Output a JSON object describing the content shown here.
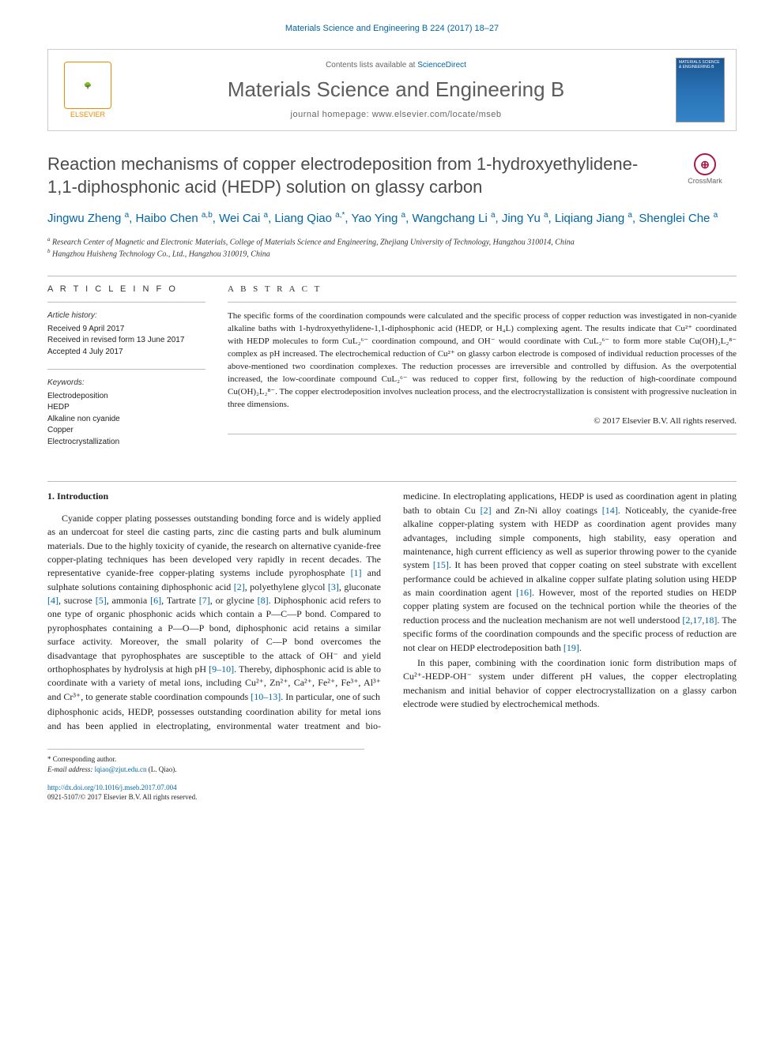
{
  "citation": "Materials Science and Engineering B 224 (2017) 18–27",
  "header": {
    "contents_prefix": "Contents lists available at ",
    "contents_link": "ScienceDirect",
    "journal": "Materials Science and Engineering B",
    "homepage_prefix": "journal homepage: ",
    "homepage_url": "www.elsevier.com/locate/mseb",
    "publisher": "ELSEVIER",
    "cover_text": "MATERIALS SCIENCE & ENGINEERING B"
  },
  "title": "Reaction mechanisms of copper electrodeposition from 1-hydroxyethylidene-1,1-diphosphonic acid (HEDP) solution on glassy carbon",
  "crossmark": "CrossMark",
  "authors_html": "Jingwu Zheng <sup>a</sup>, Haibo Chen <sup>a,b</sup>, Wei Cai <sup>a</sup>, Liang Qiao <sup>a,*</sup>, Yao Ying <sup>a</sup>, Wangchang Li <sup>a</sup>, Jing Yu <sup>a</sup>, Liqiang Jiang <sup>a</sup>, Shenglei Che <sup>a</sup>",
  "affiliations": {
    "a": "Research Center of Magnetic and Electronic Materials, College of Materials Science and Engineering, Zhejiang University of Technology, Hangzhou 310014, China",
    "b": "Hangzhou Huisheng Technology Co., Ltd., Hangzhou 310019, China"
  },
  "article_info": {
    "heading": "A R T I C L E   I N F O",
    "history_label": "Article history:",
    "history": [
      "Received 9 April 2017",
      "Received in revised form 13 June 2017",
      "Accepted 4 July 2017"
    ],
    "keywords_label": "Keywords:",
    "keywords": [
      "Electrodeposition",
      "HEDP",
      "Alkaline non cyanide",
      "Copper",
      "Electrocrystallization"
    ]
  },
  "abstract": {
    "heading": "A B S T R A C T",
    "text": "The specific forms of the coordination compounds were calculated and the specific process of copper reduction was investigated in non-cyanide alkaline baths with 1-hydroxyethylidene-1,1-diphosphonic acid (HEDP, or H₄L) complexing agent. The results indicate that Cu²⁺ coordinated with HEDP molecules to form CuL₂⁶⁻ coordination compound, and OH⁻ would coordinate with CuL₂⁶⁻ to form more stable Cu(OH)₂L₂⁸⁻ complex as pH increased. The electrochemical reduction of Cu²⁺ on glassy carbon electrode is composed of individual reduction processes of the above-mentioned two coordination complexes. The reduction processes are irreversible and controlled by diffusion. As the overpotential increased, the low-coordinate compound CuL₂⁶⁻ was reduced to copper first, following by the reduction of high-coordinate compound Cu(OH)₂L₂⁸⁻. The copper electrodeposition involves nucleation process, and the electrocrystallization is consistent with progressive nucleation in three dimensions.",
    "copyright": "© 2017 Elsevier B.V. All rights reserved."
  },
  "intro": {
    "heading": "1. Introduction",
    "para1_html": "Cyanide copper plating possesses outstanding bonding force and is widely applied as an undercoat for steel die casting parts, zinc die casting parts and bulk aluminum materials. Due to the highly toxicity of cyanide, the research on alternative cyanide-free copper-plating techniques has been developed very rapidly in recent decades. The representative cyanide-free copper-plating systems include pyrophosphate <span class='ref'>[1]</span> and sulphate solutions containing diphosphonic acid <span class='ref'>[2]</span>, polyethylene glycol <span class='ref'>[3]</span>, gluconate <span class='ref'>[4]</span>, sucrose <span class='ref'>[5]</span>, ammonia <span class='ref'>[6]</span>, Tartrate <span class='ref'>[7]</span>, or glycine <span class='ref'>[8]</span>. Diphosphonic acid refers to one type of organic phosphonic acids which contain a P—C—P bond. Compared to pyrophosphates containing a P—O—P bond, diphosphonic acid retains a similar surface activity. Moreover, the small polarity of C—P bond overcomes the disadvantage that pyrophosphates are susceptible to the attack of OH⁻ and yield orthophosphates by hydrolysis at high pH <span class='ref'>[9–10]</span>. Thereby, diphosphonic acid is able to coordinate with a variety of metal ions, including Cu²⁺, Zn²⁺, Ca²⁺, Fe²⁺, Fe³⁺, Al³⁺ and Cr³⁺, to generate stable coordination compounds <span class='ref'>[10–13]</span>. In particular, one of such",
    "para2_html": "diphosphonic acids, HEDP, possesses outstanding coordination ability for metal ions and has been applied in electroplating, environmental water treatment and bio-medicine. In electroplating applications, HEDP is used as coordination agent in plating bath to obtain Cu <span class='ref'>[2]</span> and Zn-Ni alloy coatings <span class='ref'>[14]</span>. Noticeably, the cyanide-free alkaline copper-plating system with HEDP as coordination agent provides many advantages, including simple components, high stability, easy operation and maintenance, high current efficiency as well as superior throwing power to the cyanide system <span class='ref'>[15]</span>. It has been proved that copper coating on steel substrate with excellent performance could be achieved in alkaline copper sulfate plating solution using HEDP as main coordination agent <span class='ref'>[16]</span>. However, most of the reported studies on HEDP copper plating system are focused on the technical portion while the theories of the reduction process and the nucleation mechanism are not well understood <span class='ref'>[2,17,18]</span>. The specific forms of the coordination compounds and the specific process of reduction are not clear on HEDP electrodeposition bath <span class='ref'>[19]</span>.",
    "para3_html": "In this paper, combining with the coordination ionic form distribution maps of Cu²⁺-HEDP-OH⁻ system under different pH values, the copper electroplating mechanism and initial behavior of copper electrocrystallization on a glassy carbon electrode were studied by electrochemical methods."
  },
  "footnote": {
    "corr": "* Corresponding author.",
    "email_label": "E-mail address: ",
    "email": "lqiao@zjut.edu.cn",
    "email_suffix": " (L. Qiao)."
  },
  "doi": {
    "link": "http://dx.doi.org/10.1016/j.mseb.2017.07.004",
    "issn_line": "0921-5107/© 2017 Elsevier B.V. All rights reserved."
  },
  "colors": {
    "link": "#0066a5",
    "orange": "#ed8b00",
    "gray_text": "#5c5c5c"
  }
}
